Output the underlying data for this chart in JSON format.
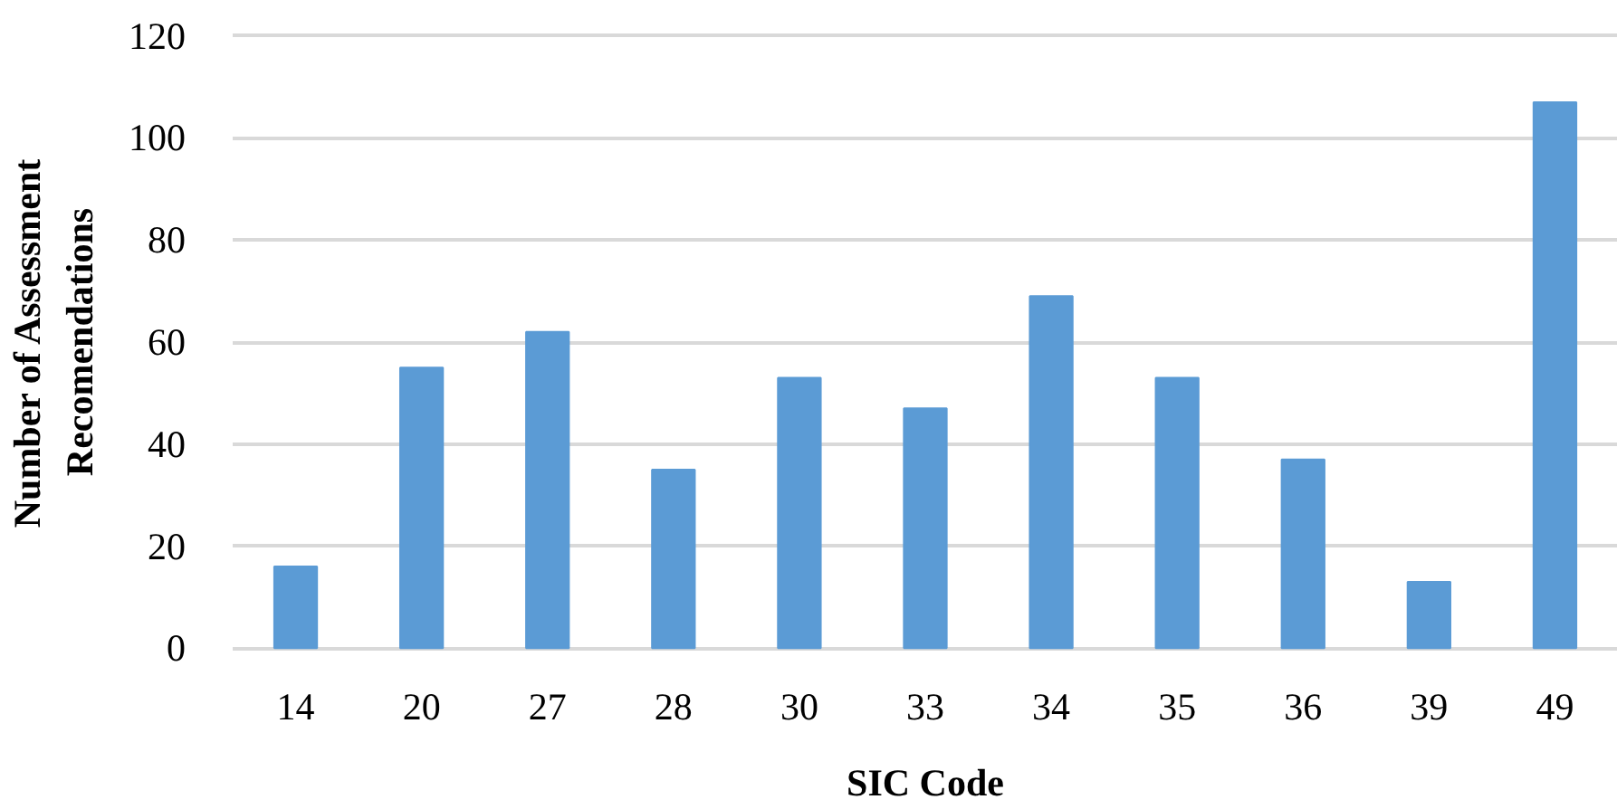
{
  "chart_data": {
    "type": "bar",
    "xlabel": "SIC Code",
    "ylabel": "Number of Assessment\nRecomendations",
    "categories": [
      "14",
      "20",
      "27",
      "28",
      "30",
      "33",
      "34",
      "35",
      "36",
      "39",
      "49"
    ],
    "values": [
      16,
      55,
      62,
      35,
      53,
      47,
      69,
      53,
      37,
      13,
      107
    ],
    "color": "#5b9bd5",
    "ylim": [
      0,
      120
    ],
    "yticks": [
      0,
      20,
      40,
      60,
      80,
      100,
      120
    ],
    "grid": "y"
  }
}
